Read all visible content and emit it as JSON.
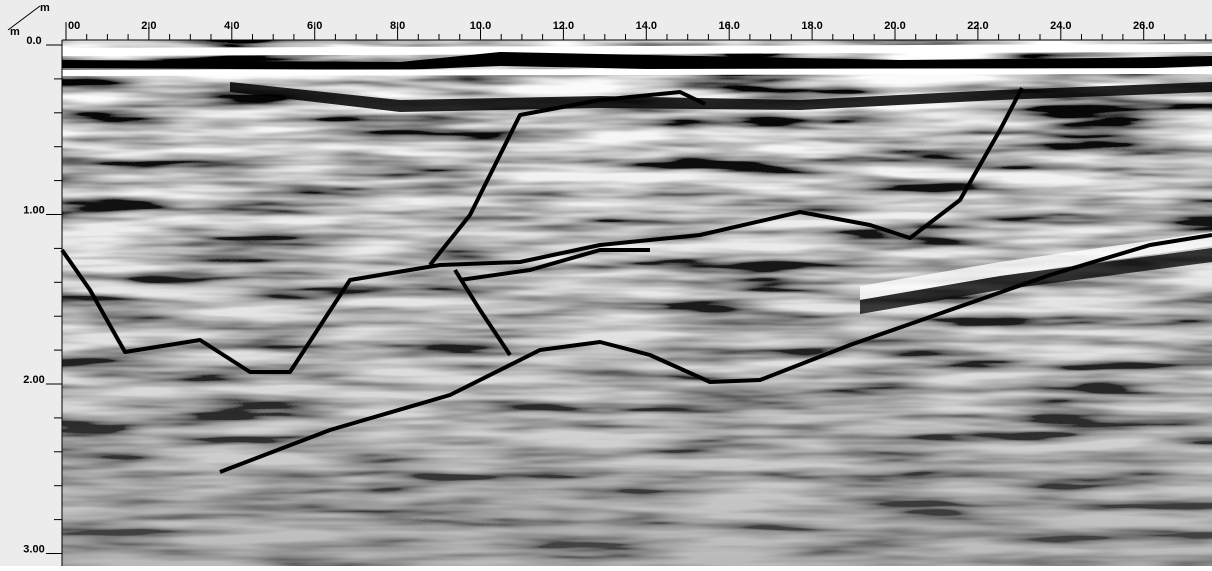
{
  "axes": {
    "x_unit": "m",
    "y_unit": "m",
    "x_labels": [
      "00",
      "2.0",
      "4.0",
      "6.0",
      "8.0",
      "10.0",
      "12.0",
      "14.0",
      "16.0",
      "18.0",
      "20.0",
      "22.0",
      "24.0",
      "26.0"
    ],
    "y_labels": [
      "0.0",
      "1.00",
      "2.00",
      "3.00"
    ]
  }
}
